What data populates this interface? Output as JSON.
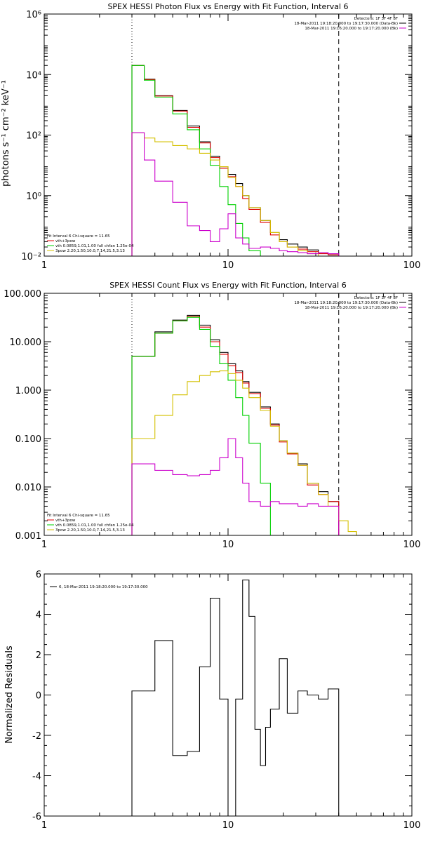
{
  "chart_data": [
    {
      "type": "line",
      "title": "SPEX HESSI Photon Flux vs Energy with Fit Function, Interval 6",
      "xlabel": "",
      "ylabel": "photons s⁻¹ cm⁻² keV⁻¹",
      "x_scale": "log",
      "y_scale": "log",
      "xlim": [
        1,
        100
      ],
      "ylim": [
        0.01,
        1000000
      ],
      "x_ticks": [
        {
          "value": 1,
          "label": "1"
        },
        {
          "value": 10,
          "label": "10"
        },
        {
          "value": 100,
          "label": "100"
        }
      ],
      "y_ticks": [
        {
          "value": 0.01,
          "label": "10⁻²"
        },
        {
          "value": 1,
          "label": "10⁰"
        },
        {
          "value": 100,
          "label": "10²"
        },
        {
          "value": 10000,
          "label": "10⁴"
        },
        {
          "value": 1000000,
          "label": "10⁶"
        }
      ],
      "vlines": [
        {
          "x": 3,
          "style": "dotted"
        },
        {
          "x": 40,
          "style": "dashed"
        }
      ],
      "legend_top_right": [
        {
          "text": "Detectors: 1F 3F 4F 8F",
          "color": ""
        },
        {
          "text": "18-Mar-2011 19:18:20.000 to 19:17:30.000 (Data-Bk)",
          "color": "#000000"
        },
        {
          "text": "18-Mar-2011 19:16:20.000 to 19:17:20.000 (Bk)",
          "color": "#cc00cc"
        }
      ],
      "legend_bottom_left": [
        {
          "text": "Fit Interval 6   Chi-square = 11.65",
          "color": ""
        },
        {
          "text": "vth+3pow",
          "color": "#e00000"
        },
        {
          "text": "vth 0.0859,1.01,1.00  full chfan 1.25e-04",
          "color": "#00d000"
        },
        {
          "text": "3pow 2.20,1.50,10.0,7.14,21.5,3.13",
          "color": "#d4c000"
        }
      ],
      "series": [
        {
          "color": "#000000",
          "style": "step",
          "edges": [
            3,
            3.5,
            4,
            5,
            6,
            7,
            8,
            9,
            10,
            11,
            12,
            13,
            15,
            17,
            19,
            21,
            24,
            27,
            31,
            35,
            40
          ],
          "values": [
            20000,
            7000,
            2000,
            650,
            200,
            60,
            20,
            9,
            5,
            2.5,
            1,
            0.4,
            0.15,
            0.06,
            0.035,
            0.025,
            0.02,
            0.016,
            0.013,
            0.011
          ]
        },
        {
          "color": "#e00000",
          "style": "step",
          "edges": [
            3,
            3.5,
            4,
            5,
            6,
            7,
            8,
            9,
            10,
            11,
            12,
            13,
            15,
            17,
            19,
            21,
            24,
            27,
            31,
            35,
            40
          ],
          "values": [
            20000,
            6800,
            1950,
            620,
            180,
            55,
            18,
            8,
            4.2,
            2,
            0.8,
            0.35,
            0.13,
            0.05,
            0.03,
            0.02,
            0.017,
            0.014,
            0.012,
            0.011
          ]
        },
        {
          "color": "#00d000",
          "style": "step",
          "edges": [
            3,
            3.5,
            4,
            5,
            6,
            7,
            8,
            9,
            10,
            11,
            12,
            13,
            15,
            17
          ],
          "values": [
            20000,
            6500,
            1800,
            500,
            150,
            35,
            10,
            2,
            0.5,
            0.12,
            0.04,
            0.015,
            0.008
          ]
        },
        {
          "color": "#d4c000",
          "style": "step",
          "edges": [
            3,
            3.5,
            4,
            5,
            6,
            7,
            8,
            9,
            10,
            11,
            12,
            13,
            15,
            17,
            19,
            21,
            24,
            27,
            31,
            35,
            40,
            45
          ],
          "values": [
            120,
            80,
            60,
            45,
            35,
            25,
            15,
            9,
            4,
            2,
            1,
            0.4,
            0.15,
            0.06,
            0.03,
            0.02,
            0.015,
            0.012,
            0.01,
            0.008,
            0.007
          ]
        },
        {
          "color": "#cc00cc",
          "style": "step",
          "edges": [
            3,
            3.5,
            4,
            5,
            6,
            7,
            8,
            9,
            10,
            11,
            12,
            13,
            15,
            17,
            19,
            21,
            24,
            27,
            31,
            35,
            40
          ],
          "values": [
            120,
            15,
            3,
            0.6,
            0.1,
            0.07,
            0.03,
            0.08,
            0.25,
            0.04,
            0.025,
            0.018,
            0.02,
            0.018,
            0.015,
            0.014,
            0.013,
            0.012,
            0.013,
            0.012
          ]
        }
      ]
    },
    {
      "type": "line",
      "title": "SPEX HESSI Count Flux vs Energy with Fit Function, Interval 6",
      "xlabel": "",
      "ylabel": "",
      "x_scale": "log",
      "y_scale": "log",
      "xlim": [
        1,
        100
      ],
      "ylim": [
        0.001,
        100
      ],
      "x_ticks": [
        {
          "value": 1,
          "label": "1"
        },
        {
          "value": 10,
          "label": "10"
        },
        {
          "value": 100,
          "label": "100"
        }
      ],
      "y_ticks": [
        {
          "value": 0.001,
          "label": "0.001"
        },
        {
          "value": 0.01,
          "label": "0.010"
        },
        {
          "value": 0.1,
          "label": "0.100"
        },
        {
          "value": 1,
          "label": "1.000"
        },
        {
          "value": 10,
          "label": "10.000"
        },
        {
          "value": 100,
          "label": "100.000"
        }
      ],
      "vlines": [
        {
          "x": 3,
          "style": "dotted"
        },
        {
          "x": 40,
          "style": "dashed"
        }
      ],
      "legend_top_right": [
        {
          "text": "Detectors: 1F 3F 4F 8F",
          "color": ""
        },
        {
          "text": "18-Mar-2011 19:18:20.000 to 19:17:30.000 (Data-Bk)",
          "color": "#000000"
        },
        {
          "text": "18-Mar-2011 19:16:20.000 to 19:17:20.000 (Bk)",
          "color": "#cc00cc"
        }
      ],
      "legend_bottom_left": [
        {
          "text": "Fit Interval 6   Chi-square = 11.65",
          "color": ""
        },
        {
          "text": "vth+3pow",
          "color": "#e00000"
        },
        {
          "text": "vth 0.0859,1.01,1.00  full chfan 1.25e-04",
          "color": "#00d000"
        },
        {
          "text": "3pow 2.20,1.50,10.0,7.14,21.5,3.13",
          "color": "#d4c000"
        }
      ],
      "series": [
        {
          "color": "#000000",
          "style": "step",
          "edges": [
            3,
            4,
            5,
            6,
            7,
            8,
            9,
            10,
            11,
            12,
            13,
            15,
            17,
            19,
            21,
            24,
            27,
            31,
            35,
            40
          ],
          "values": [
            5,
            16,
            28,
            35,
            22,
            11,
            6,
            3.5,
            2.5,
            1.5,
            0.9,
            0.45,
            0.2,
            0.09,
            0.05,
            0.03,
            0.012,
            0.008,
            0.005
          ]
        },
        {
          "color": "#e00000",
          "style": "step",
          "edges": [
            3,
            4,
            5,
            6,
            7,
            8,
            9,
            10,
            11,
            12,
            13,
            15,
            17,
            19,
            21,
            24,
            27,
            31,
            35,
            40
          ],
          "values": [
            5,
            15,
            27,
            33,
            20,
            10,
            5.5,
            3.2,
            2.3,
            1.4,
            0.85,
            0.42,
            0.19,
            0.085,
            0.048,
            0.028,
            0.011,
            0.007,
            0.005
          ]
        },
        {
          "color": "#00d000",
          "style": "step",
          "edges": [
            3,
            4,
            5,
            6,
            7,
            8,
            9,
            10,
            11,
            12,
            13,
            15,
            17
          ],
          "values": [
            5,
            15,
            27,
            32,
            18,
            8,
            3.5,
            1.6,
            0.7,
            0.3,
            0.08,
            0.012
          ]
        },
        {
          "color": "#d4c000",
          "style": "step",
          "edges": [
            3,
            4,
            5,
            6,
            7,
            8,
            9,
            10,
            11,
            12,
            13,
            15,
            17,
            19,
            21,
            24,
            27,
            31,
            35,
            40,
            45,
            50
          ],
          "values": [
            0.1,
            0.3,
            0.8,
            1.5,
            2,
            2.4,
            2.5,
            2.2,
            1.6,
            1.1,
            0.7,
            0.38,
            0.18,
            0.09,
            0.05,
            0.028,
            0.012,
            0.007,
            0.004,
            0.002,
            0.0012
          ]
        },
        {
          "color": "#cc00cc",
          "style": "step",
          "edges": [
            3,
            4,
            5,
            6,
            7,
            8,
            9,
            10,
            11,
            12,
            13,
            15,
            17,
            19,
            21,
            24,
            27,
            31,
            35,
            40
          ],
          "values": [
            0.03,
            0.022,
            0.018,
            0.017,
            0.018,
            0.022,
            0.04,
            0.1,
            0.04,
            0.012,
            0.005,
            0.004,
            0.005,
            0.0045,
            0.0045,
            0.004,
            0.0045,
            0.004,
            0.004
          ]
        }
      ]
    },
    {
      "type": "line",
      "title": "",
      "xlabel": "",
      "ylabel": "Normalized Residuals",
      "x_scale": "log",
      "y_scale": "linear",
      "xlim": [
        1,
        100
      ],
      "ylim": [
        -6,
        6
      ],
      "x_ticks": [
        {
          "value": 1,
          "label": "1"
        },
        {
          "value": 10,
          "label": "10"
        },
        {
          "value": 100,
          "label": "100"
        }
      ],
      "y_ticks": [
        {
          "value": -6,
          "label": "-6"
        },
        {
          "value": -4,
          "label": "-4"
        },
        {
          "value": -2,
          "label": "-2"
        },
        {
          "value": 0,
          "label": "0"
        },
        {
          "value": 2,
          "label": "2"
        },
        {
          "value": 4,
          "label": "4"
        },
        {
          "value": 6,
          "label": "6"
        }
      ],
      "vlines": [],
      "legend_top_left": [
        {
          "text": "6, 18-Mar-2011 19:18:20.000 to 19:17:30.000",
          "color": "#000000"
        }
      ],
      "series": [
        {
          "color": "#000000",
          "style": "step",
          "edges": [
            3,
            4,
            5,
            6,
            7,
            8,
            9,
            10,
            11,
            12,
            13,
            14,
            15,
            16,
            17,
            19,
            21,
            24,
            27,
            31,
            35,
            40
          ],
          "values": [
            0.2,
            2.7,
            -3,
            -2.8,
            1.4,
            4.8,
            -0.2,
            -6,
            -0.2,
            5.7,
            3.9,
            -1.7,
            -3.5,
            -1.6,
            -0.7,
            1.8,
            -0.9,
            0.2,
            0.0,
            -0.2,
            0.3
          ]
        }
      ]
    }
  ]
}
